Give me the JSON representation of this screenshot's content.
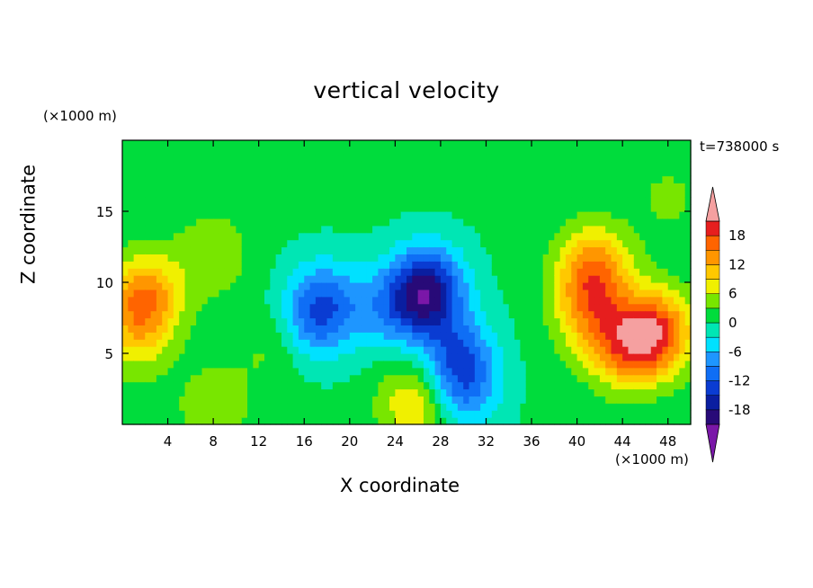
{
  "chart_data": {
    "type": "heatmap",
    "title": "vertical velocity",
    "xlabel": "X coordinate",
    "ylabel": "Z coordinate",
    "x_unit": "(×1000 m)",
    "y_unit": "(×1000 m)",
    "time_label": "t=738000 s",
    "xlim": [
      0,
      50
    ],
    "ylim": [
      0,
      20
    ],
    "x_ticks": [
      4,
      8,
      12,
      16,
      20,
      24,
      28,
      32,
      36,
      40,
      44,
      48
    ],
    "y_ticks": [
      5,
      10,
      15
    ],
    "colorbar": {
      "levels": [
        -21,
        -18,
        -15,
        -12,
        -9,
        -6,
        -3,
        0,
        3,
        6,
        9,
        12,
        15,
        18,
        21
      ],
      "tick_labels": [
        "18",
        "12",
        "6",
        "0",
        "-6",
        "-12",
        "-18"
      ],
      "tick_values": [
        18,
        12,
        6,
        0,
        -6,
        -12,
        -18
      ],
      "colors": [
        "#7a17a8",
        "#280a78",
        "#0a1ea0",
        "#0a3cd2",
        "#0f6ef5",
        "#1e96ff",
        "#00e1ff",
        "#00e6b4",
        "#00dc3c",
        "#78e600",
        "#f0f000",
        "#ffc800",
        "#ff9600",
        "#ff6400",
        "#e61e1e",
        "#f5a0a0"
      ],
      "extend": "both"
    },
    "features": [
      {
        "x": 2,
        "z": 9,
        "w": 14
      },
      {
        "x": 1,
        "z": 6,
        "w": 6
      },
      {
        "x": 8,
        "z": 12,
        "w": 5
      },
      {
        "x": 8,
        "z": 1.2,
        "w": 5
      },
      {
        "x": 13,
        "z": 5.5,
        "w": 3
      },
      {
        "x": 18,
        "z": 9,
        "w": -6
      },
      {
        "x": 23,
        "z": 8,
        "w": -6
      },
      {
        "x": 17,
        "z": 7.5,
        "w": -9
      },
      {
        "x": 27,
        "z": 10,
        "w": -8
      },
      {
        "x": 26.5,
        "z": 9,
        "w": -13
      },
      {
        "x": 29.5,
        "z": 5,
        "w": -9
      },
      {
        "x": 30,
        "z": 2.5,
        "w": -9
      },
      {
        "x": 25.8,
        "z": 1.5,
        "w": 9
      },
      {
        "x": 41,
        "z": 8,
        "w": 9
      },
      {
        "x": 41.5,
        "z": 11,
        "w": 13
      },
      {
        "x": 44,
        "z": 5.5,
        "w": 12
      },
      {
        "x": 47,
        "z": 6.5,
        "w": 17
      },
      {
        "x": 48,
        "z": 16,
        "w": 3
      }
    ]
  }
}
